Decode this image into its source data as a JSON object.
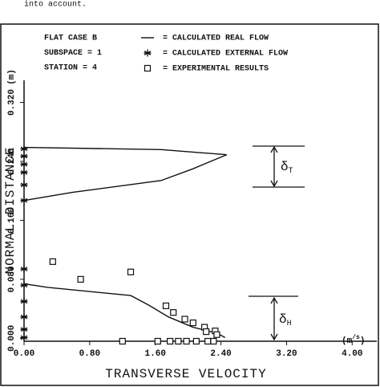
{
  "top_text": "into account.",
  "chart_data": {
    "type": "line",
    "notes": [
      "FLAT CASE B",
      "SUBSPACE = 1",
      "STATION = 4"
    ],
    "x_label": "TRANSVERSE VELOCITY",
    "y_label": "NORMAL DISTANCE",
    "x_unit": {
      "text": "(m",
      "sup": "/s",
      "tail": ")"
    },
    "y_unit": "(m)",
    "annotations": [
      {
        "text": "δ",
        "sub": "T"
      },
      {
        "text": "δ",
        "sub": "H"
      }
    ],
    "xlim": [
      0,
      4.3
    ],
    "ylim": [
      -0.004,
      0.35
    ],
    "xticks": [
      {
        "value": 0,
        "label": "0.00"
      },
      {
        "value": 0.8,
        "label": "0.80"
      },
      {
        "value": 1.6,
        "label": "1.60"
      },
      {
        "value": 2.4,
        "label": "2.40"
      },
      {
        "value": 3.2,
        "label": "3.20"
      },
      {
        "value": 4,
        "label": "4.00"
      }
    ],
    "yticks": [
      {
        "value": 0,
        "label": "0.000"
      },
      {
        "value": 0.08,
        "label": "0.080"
      },
      {
        "value": 0.16,
        "label": "0.160"
      },
      {
        "value": 0.24,
        "label": "0.240"
      },
      {
        "value": 0.32,
        "label": "0.320"
      }
    ],
    "series": [
      {
        "name": "= CALCULATED REAL FLOW",
        "type": "line",
        "color": "#111111",
        "x": [
          0,
          0.29,
          1.3,
          1.52,
          1.76,
          2.06,
          2.35,
          2.45,
          null,
          0,
          0.59,
          1.67,
          2.06,
          2.47,
          1.67,
          0
        ],
        "values": [
          0.074,
          0.069,
          0.058,
          0.045,
          0.029,
          0.015,
          0.007,
          0.001,
          null,
          0.187,
          0.198,
          0.214,
          0.23,
          0.249,
          0.256,
          0.259
        ]
      },
      {
        "name": "= CALCULATED EXTERNAL FLOW",
        "type": "scatter",
        "marker": "star",
        "color": "#111111",
        "x": [
          0,
          0,
          0,
          0,
          0,
          0,
          0,
          0,
          0,
          0,
          0,
          0
        ],
        "values": [
          0.257,
          0.247,
          0.236,
          0.225,
          0.208,
          0.187,
          0.094,
          0.072,
          0.05,
          0.029,
          0.012,
          0.001
        ]
      },
      {
        "name": "= EXPERIMENTAL RESULTS",
        "type": "scatter",
        "marker": "square",
        "color": "#111111",
        "x": [
          0.35,
          0.69,
          1.3,
          1.73,
          1.82,
          1.96,
          2.06,
          2.2,
          2.33,
          2.22,
          2.35,
          1.2,
          1.63,
          1.78,
          1.88,
          1.98,
          2.1,
          2.24,
          2.31
        ],
        "values": [
          0.104,
          0.08,
          0.09,
          0.044,
          0.035,
          0.026,
          0.021,
          0.015,
          0.01,
          0.009,
          0.005,
          -0.004,
          -0.004,
          -0.004,
          -0.004,
          -0.004,
          -0.004,
          -0.004,
          -0.004
        ]
      }
    ]
  }
}
